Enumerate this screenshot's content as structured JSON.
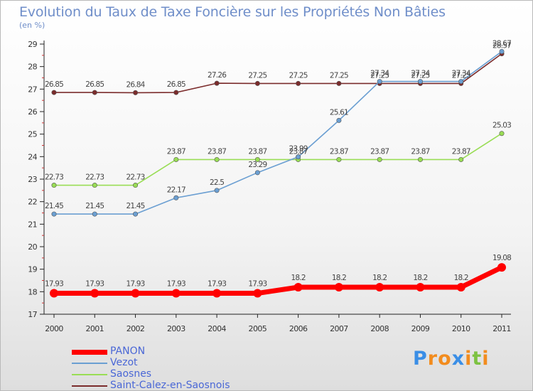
{
  "chart_data": {
    "type": "line",
    "title": "Evolution du Taux de Taxe Foncière sur les Propriétés Non Bâties",
    "subtitle": "(en %)",
    "xlabel": "",
    "ylabel": "",
    "x": [
      2000,
      2001,
      2002,
      2003,
      2004,
      2005,
      2006,
      2007,
      2008,
      2009,
      2010,
      2011
    ],
    "ylim": [
      17,
      29
    ],
    "yticks": [
      17,
      18,
      19,
      20,
      21,
      22,
      23,
      24,
      25,
      26,
      27,
      28,
      29
    ],
    "series": [
      {
        "name": "PANON",
        "color": "#ff0000",
        "values": [
          17.93,
          17.93,
          17.93,
          17.93,
          17.93,
          17.93,
          18.2,
          18.2,
          18.2,
          18.2,
          18.2,
          19.08
        ],
        "labels": [
          "17.93",
          "17.93",
          "17.93",
          "17.93",
          "17.93",
          "17.93",
          "18.2",
          "18.2",
          "18.2",
          "18.2",
          "18.2",
          "19.08"
        ]
      },
      {
        "name": "Vezot",
        "color": "#6b9fd2",
        "values": [
          21.45,
          21.45,
          21.45,
          22.17,
          22.5,
          23.29,
          23.99,
          25.61,
          27.34,
          27.34,
          27.34,
          28.67
        ],
        "labels": [
          "21.45",
          "21.45",
          "21.45",
          "22.17",
          "22.5",
          "23.29",
          "23.99",
          "25.61",
          "27.34",
          "27.34",
          "27.34",
          "28.67"
        ]
      },
      {
        "name": "Saosnes",
        "color": "#99dd55",
        "values": [
          22.73,
          22.73,
          22.73,
          23.87,
          23.87,
          23.87,
          23.87,
          23.87,
          23.87,
          23.87,
          23.87,
          25.03
        ],
        "labels": [
          "22.73",
          "22.73",
          "22.73",
          "23.87",
          "23.87",
          "23.87",
          "23.87",
          "23.87",
          "23.87",
          "23.87",
          "23.87",
          "25.03"
        ]
      },
      {
        "name": "Saint-Calez-en-Saosnois",
        "color": "#7b2c2c",
        "values": [
          26.85,
          26.85,
          26.84,
          26.85,
          27.26,
          27.25,
          27.25,
          27.25,
          27.25,
          27.25,
          27.25,
          28.57
        ],
        "labels": [
          "26.85",
          "26.85",
          "26.84",
          "26.85",
          "27.26",
          "27.25",
          "27.25",
          "27.25",
          "27.25",
          "27.25",
          "27.25",
          "28.57"
        ]
      }
    ],
    "legend": [
      "PANON",
      "Vezot",
      "Saosnes",
      "Saint-Calez-en-Saosnois"
    ],
    "legend_position": "bottom-left",
    "grid": false
  },
  "logo": {
    "letters": [
      "P",
      "r",
      "o",
      "x",
      "i",
      "t",
      "i"
    ],
    "colors": [
      "#3a8ee6",
      "#f28c1e",
      "#f28c1e",
      "#3a8ee6",
      "#f28c1e",
      "#7dc242",
      "#f28c1e"
    ]
  }
}
